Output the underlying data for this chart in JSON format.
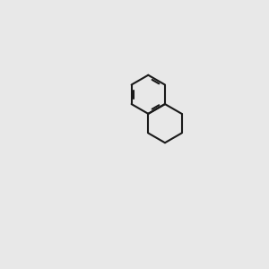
{
  "background_color": "#e8e8e8",
  "bond_color": "#1a1a1a",
  "n_color": "#0000ff",
  "o_color": "#ff0000",
  "figsize": [
    3.0,
    3.0
  ],
  "dpi": 100,
  "lw": 1.5,
  "lw_aromatic": 1.5
}
